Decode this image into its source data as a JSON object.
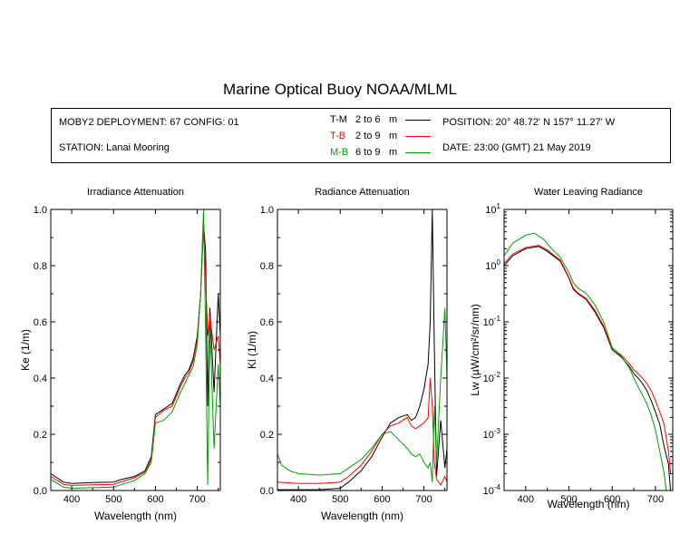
{
  "title": "Marine Optical Buoy NOAA/MLML",
  "info": {
    "deployment": "MOBY2 DEPLOYMENT: 67 CONFIG: 01",
    "station": "STATION: Lanai Mooring",
    "position": "POSITION: 20° 48.72' N   157° 11.27' W",
    "date": "DATE: 23:00 (GMT) 21 May 2019"
  },
  "legend": [
    {
      "code": "T-M",
      "range": "2 to 6",
      "unit": "m",
      "color": "#000000"
    },
    {
      "code": "T-B",
      "range": "2 to 9",
      "unit": "m",
      "color": "#ff0000"
    },
    {
      "code": "M-B",
      "range": "6 to 9",
      "unit": "m",
      "color": "#00a000"
    }
  ],
  "chart_data": [
    {
      "type": "line",
      "title": "Irradiance Attenuation",
      "xlabel": "Wavelength (nm)",
      "ylabel": "Ke  (1/m)",
      "xlim": [
        350,
        755
      ],
      "ylim": [
        0,
        1.0
      ],
      "xticks": [
        "400",
        "500",
        "600",
        "700"
      ],
      "yticks": [
        "0.0",
        "0.2",
        "0.4",
        "0.6",
        "0.8",
        "1.0"
      ],
      "series": [
        {
          "name": "T-M",
          "color": "#000000",
          "x": [
            350,
            380,
            400,
            450,
            500,
            520,
            550,
            575,
            590,
            600,
            620,
            640,
            660,
            670,
            680,
            690,
            700,
            708,
            715,
            720,
            725,
            730,
            740,
            750,
            755
          ],
          "y": [
            0.06,
            0.03,
            0.025,
            0.028,
            0.03,
            0.04,
            0.05,
            0.07,
            0.12,
            0.27,
            0.29,
            0.31,
            0.38,
            0.41,
            0.43,
            0.47,
            0.55,
            0.7,
            0.95,
            0.85,
            0.3,
            0.65,
            0.35,
            0.7,
            0.55
          ]
        },
        {
          "name": "T-B",
          "color": "#ff0000",
          "x": [
            350,
            380,
            400,
            450,
            500,
            520,
            550,
            575,
            590,
            600,
            620,
            640,
            660,
            670,
            680,
            690,
            700,
            708,
            715,
            720,
            725,
            730,
            740,
            750,
            755
          ],
          "y": [
            0.05,
            0.022,
            0.018,
            0.02,
            0.022,
            0.032,
            0.045,
            0.065,
            0.11,
            0.26,
            0.285,
            0.3,
            0.37,
            0.4,
            0.42,
            0.46,
            0.54,
            0.7,
            0.95,
            0.75,
            0.55,
            0.62,
            0.5,
            0.55,
            0.45
          ]
        },
        {
          "name": "M-B",
          "color": "#00a000",
          "x": [
            350,
            380,
            400,
            450,
            500,
            520,
            550,
            575,
            590,
            600,
            620,
            640,
            660,
            670,
            680,
            690,
            700,
            708,
            715,
            720,
            725,
            730,
            740,
            750,
            755
          ],
          "y": [
            0.04,
            0.012,
            0.008,
            0.01,
            0.012,
            0.022,
            0.035,
            0.06,
            0.1,
            0.24,
            0.25,
            0.28,
            0.35,
            0.38,
            0.41,
            0.44,
            0.52,
            0.7,
            1.0,
            0.55,
            0.02,
            0.6,
            0.15,
            0.45,
            0.3
          ]
        }
      ]
    },
    {
      "type": "line",
      "title": "Radiance Attenuation",
      "xlabel": "Wavelength (nm)",
      "ylabel": "Kl  (1/m)",
      "xlim": [
        350,
        755
      ],
      "ylim": [
        0,
        1.0
      ],
      "xticks": [
        "400",
        "500",
        "600",
        "700"
      ],
      "yticks": [
        "0.0",
        "0.2",
        "0.4",
        "0.6",
        "0.8",
        "1.0"
      ],
      "series": [
        {
          "name": "T-M",
          "color": "#000000",
          "x": [
            350,
            400,
            450,
            500,
            520,
            550,
            575,
            600,
            620,
            640,
            660,
            670,
            680,
            690,
            700,
            710,
            715,
            720,
            725,
            730,
            740,
            750,
            755
          ],
          "y": [
            0.003,
            0.003,
            0.003,
            0.008,
            0.03,
            0.07,
            0.12,
            0.19,
            0.24,
            0.26,
            0.27,
            0.25,
            0.26,
            0.3,
            0.36,
            0.45,
            0.6,
            1.0,
            0.5,
            0.05,
            0.25,
            0.08,
            0.15
          ]
        },
        {
          "name": "T-B",
          "color": "#ff0000",
          "x": [
            350,
            400,
            450,
            500,
            520,
            550,
            575,
            600,
            620,
            640,
            660,
            670,
            680,
            690,
            700,
            710,
            715,
            720,
            725,
            730,
            740,
            750,
            755
          ],
          "y": [
            0.03,
            0.025,
            0.025,
            0.03,
            0.05,
            0.09,
            0.14,
            0.2,
            0.23,
            0.24,
            0.26,
            0.23,
            0.22,
            0.23,
            0.24,
            0.26,
            0.4,
            0.3,
            0.1,
            0.04,
            0.02,
            0.05,
            0.03
          ]
        },
        {
          "name": "M-B",
          "color": "#00a000",
          "x": [
            350,
            360,
            380,
            400,
            450,
            500,
            520,
            550,
            575,
            600,
            620,
            640,
            660,
            670,
            680,
            690,
            700,
            710,
            715,
            720,
            725,
            730,
            740,
            750,
            755
          ],
          "y": [
            0.13,
            0.09,
            0.07,
            0.06,
            0.055,
            0.06,
            0.08,
            0.11,
            0.15,
            0.2,
            0.21,
            0.18,
            0.15,
            0.13,
            0.12,
            0.13,
            0.1,
            0.08,
            0.1,
            0.03,
            0.3,
            0.1,
            0.4,
            0.65,
            0.4
          ]
        }
      ]
    },
    {
      "type": "line",
      "title": "Water Leaving Radiance",
      "xlabel": "Wavelength (nm)",
      "ylabel": "Lw  (µW/cm²/sr/nm)",
      "xscale": "linear",
      "yscale": "log",
      "xlim": [
        350,
        740
      ],
      "ylim": [
        0.0001,
        10
      ],
      "xticks": [
        "400",
        "500",
        "600",
        "700"
      ],
      "yticks": [
        {
          "base": "10",
          "exp": "-4"
        },
        {
          "base": "10",
          "exp": "-3"
        },
        {
          "base": "10",
          "exp": "-2"
        },
        {
          "base": "10",
          "exp": "-1"
        },
        {
          "base": "10",
          "exp": "0"
        },
        {
          "base": "10",
          "exp": "1"
        }
      ],
      "series": [
        {
          "name": "T-M",
          "color": "#000000",
          "x": [
            350,
            370,
            400,
            430,
            450,
            480,
            500,
            510,
            520,
            540,
            560,
            580,
            600,
            620,
            640,
            650,
            660,
            670,
            680,
            690,
            700,
            710,
            720,
            730,
            735
          ],
          "y": [
            1.0,
            1.5,
            2.0,
            2.2,
            1.8,
            1.2,
            0.6,
            0.38,
            0.32,
            0.25,
            0.15,
            0.08,
            0.032,
            0.024,
            0.016,
            0.012,
            0.01,
            0.008,
            0.006,
            0.004,
            0.0025,
            0.0015,
            0.0006,
            0.0003,
            0.0001
          ]
        },
        {
          "name": "T-B",
          "color": "#ff0000",
          "x": [
            350,
            370,
            400,
            430,
            450,
            480,
            500,
            510,
            520,
            540,
            560,
            580,
            600,
            620,
            640,
            650,
            660,
            670,
            680,
            690,
            700,
            710,
            720,
            730,
            735
          ],
          "y": [
            1.1,
            1.6,
            2.1,
            2.3,
            1.9,
            1.25,
            0.62,
            0.4,
            0.33,
            0.26,
            0.16,
            0.085,
            0.034,
            0.026,
            0.018,
            0.014,
            0.012,
            0.01,
            0.008,
            0.006,
            0.004,
            0.0025,
            0.0015,
            0.0005,
            0.0002
          ]
        },
        {
          "name": "M-B",
          "color": "#00a000",
          "x": [
            350,
            370,
            400,
            420,
            440,
            460,
            480,
            500,
            510,
            520,
            540,
            560,
            580,
            600,
            620,
            640,
            650,
            660,
            670,
            680,
            690,
            700,
            710,
            720,
            725
          ],
          "y": [
            1.5,
            2.5,
            3.5,
            3.8,
            3.0,
            2.0,
            1.4,
            0.75,
            0.5,
            0.4,
            0.32,
            0.2,
            0.1,
            0.035,
            0.025,
            0.015,
            0.01,
            0.007,
            0.005,
            0.0035,
            0.0022,
            0.0012,
            0.0005,
            0.0002,
            0.0001
          ]
        }
      ]
    }
  ]
}
